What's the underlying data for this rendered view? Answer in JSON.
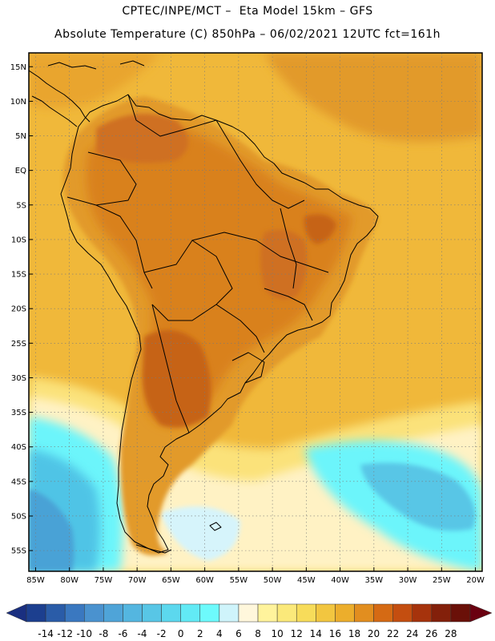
{
  "header": {
    "line1": "CPTEC/INPE/MCT –  Eta Model 15km – GFS",
    "line2": "Absolute Temperature (C) 850hPa – 06/02/2021 12UTC fct=161h"
  },
  "axes": {
    "lat_labels": [
      "15N",
      "10N",
      "5N",
      "EQ",
      "5S",
      "10S",
      "15S",
      "20S",
      "25S",
      "30S",
      "35S",
      "40S",
      "45S",
      "50S",
      "55S"
    ],
    "lat_values": [
      15,
      10,
      5,
      0,
      -5,
      -10,
      -15,
      -20,
      -25,
      -30,
      -35,
      -40,
      -45,
      -50,
      -55
    ],
    "lon_labels": [
      "85W",
      "80W",
      "75W",
      "70W",
      "65W",
      "60W",
      "55W",
      "50W",
      "45W",
      "40W",
      "35W",
      "30W",
      "25W",
      "20W"
    ],
    "lon_values": [
      -85,
      -80,
      -75,
      -70,
      -65,
      -60,
      -55,
      -50,
      -45,
      -40,
      -35,
      -30,
      -25,
      -20
    ],
    "lat_range": [
      -58,
      17
    ],
    "lon_range": [
      -86,
      -19
    ]
  },
  "colorbar": {
    "labels": [
      "-14",
      "-12",
      "-10",
      "-8",
      "-6",
      "-4",
      "-2",
      "0",
      "2",
      "4",
      "6",
      "8",
      "10",
      "12",
      "14",
      "16",
      "18",
      "20",
      "22",
      "24",
      "26",
      "28"
    ],
    "colors": [
      "#1c3f8f",
      "#2a5ca8",
      "#3a78c0",
      "#4a92cf",
      "#4fa4d8",
      "#54b6e0",
      "#58c6e6",
      "#5cd8ee",
      "#62eaf5",
      "#6dfafc",
      "#cff4fb",
      "#fff7dc",
      "#fff39c",
      "#fbe97a",
      "#f7dc5a",
      "#f2c640",
      "#ecae2c",
      "#e28e1f",
      "#d56a14",
      "#c44e10",
      "#a6330c",
      "#83200a",
      "#6a1008"
    ],
    "end_low": "#1a2f80",
    "end_high": "#6a0010"
  },
  "map": {
    "ocean_base_color": "#f0b83a",
    "land_color": "#e29a2a",
    "hot_core_color": "#cf6f20",
    "cold_south_color": "#5de6f4",
    "mild_band_color": "#fff3c8",
    "gridline_color": "#7a7a7a",
    "coastline_color": "#000000"
  }
}
